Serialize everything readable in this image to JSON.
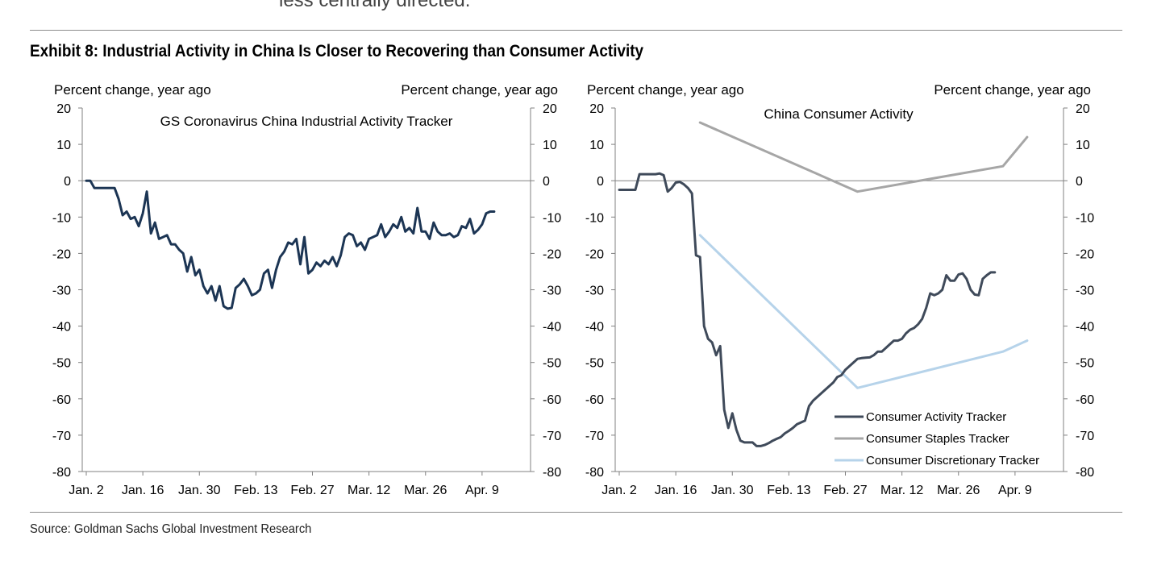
{
  "page": {
    "top_text": "less centrally directed.",
    "exhibit_title": "Exhibit 8: Industrial Activity in China Is Closer to Recovering than Consumer Activity",
    "source": "Source: Goldman Sachs Global Investment Research"
  },
  "colors": {
    "industrial": "#1c3554",
    "consumer_activity": "#3f4a5a",
    "consumer_staples": "#a6a6a6",
    "consumer_discretionary": "#b6d3ea",
    "axis": "#808080"
  },
  "chart_data": [
    {
      "type": "line",
      "title": "GS Coronavirus China Industrial Activity Tracker",
      "ylabel_left": "Percent change, year ago",
      "ylabel_right": "Percent change, year ago",
      "ylim": [
        -80,
        20
      ],
      "yticks": [
        20,
        10,
        0,
        -10,
        -20,
        -30,
        -40,
        -50,
        -60,
        -70,
        -80
      ],
      "xlim": [
        0,
        111
      ],
      "x_unit": "days since Jan. 1",
      "xtick_labels": [
        "Jan. 2",
        "Jan. 16",
        "Jan. 30",
        "Feb. 13",
        "Feb. 27",
        "Mar. 12",
        "Mar. 26",
        "Apr. 9"
      ],
      "xtick_values": [
        1,
        15,
        29,
        43,
        57,
        71,
        85,
        99
      ],
      "grid": false,
      "series": [
        {
          "name": "",
          "color_key": "industrial",
          "points": [
            [
              1,
              0
            ],
            [
              2,
              0
            ],
            [
              3,
              -2
            ],
            [
              4,
              -2
            ],
            [
              5,
              -2
            ],
            [
              6,
              -2
            ],
            [
              7,
              -2
            ],
            [
              8,
              -2
            ],
            [
              9,
              -5
            ],
            [
              10,
              -9.5
            ],
            [
              11,
              -8.5
            ],
            [
              12,
              -10.5
            ],
            [
              13,
              -10
            ],
            [
              14,
              -12.5
            ],
            [
              15,
              -9
            ],
            [
              16,
              -3
            ],
            [
              17,
              -14.5
            ],
            [
              18,
              -11.5
            ],
            [
              19,
              -16
            ],
            [
              20,
              -15.5
            ],
            [
              21,
              -15
            ],
            [
              22,
              -17.5
            ],
            [
              23,
              -17.5
            ],
            [
              24,
              -19
            ],
            [
              25,
              -20
            ],
            [
              26,
              -25
            ],
            [
              27,
              -21
            ],
            [
              28,
              -26
            ],
            [
              29,
              -24.5
            ],
            [
              30,
              -29
            ],
            [
              31,
              -31
            ],
            [
              32,
              -29
            ],
            [
              33,
              -33
            ],
            [
              34,
              -29
            ],
            [
              35,
              -34.5
            ],
            [
              36,
              -35.2
            ],
            [
              37,
              -35
            ],
            [
              38,
              -29.5
            ],
            [
              39,
              -28.5
            ],
            [
              40,
              -27
            ],
            [
              41,
              -29
            ],
            [
              42,
              -31.5
            ],
            [
              43,
              -31
            ],
            [
              44,
              -30
            ],
            [
              45,
              -25.5
            ],
            [
              46,
              -24.5
            ],
            [
              47,
              -29.5
            ],
            [
              48,
              -24.5
            ],
            [
              49,
              -21
            ],
            [
              50,
              -19.5
            ],
            [
              51,
              -17
            ],
            [
              52,
              -17.5
            ],
            [
              53,
              -16
            ],
            [
              54,
              -23
            ],
            [
              55,
              -15.5
            ],
            [
              56,
              -25.5
            ],
            [
              57,
              -24.5
            ],
            [
              58,
              -22.5
            ],
            [
              59,
              -23.5
            ],
            [
              60,
              -22
            ],
            [
              61,
              -23
            ],
            [
              62,
              -21
            ],
            [
              63,
              -23.5
            ],
            [
              64,
              -20.5
            ],
            [
              65,
              -15.5
            ],
            [
              66,
              -14.5
            ],
            [
              67,
              -15
            ],
            [
              68,
              -18
            ],
            [
              69,
              -17
            ],
            [
              70,
              -19
            ],
            [
              71,
              -16
            ],
            [
              72,
              -15.5
            ],
            [
              73,
              -15
            ],
            [
              74,
              -12
            ],
            [
              75,
              -15.5
            ],
            [
              76,
              -14
            ],
            [
              77,
              -12
            ],
            [
              78,
              -13
            ],
            [
              79,
              -10
            ],
            [
              80,
              -14
            ],
            [
              81,
              -13
            ],
            [
              82,
              -14.5
            ],
            [
              83,
              -7.5
            ],
            [
              84,
              -14
            ],
            [
              85,
              -14
            ],
            [
              86,
              -16
            ],
            [
              87,
              -11.5
            ],
            [
              88,
              -14
            ],
            [
              89,
              -15
            ],
            [
              90,
              -15
            ],
            [
              91,
              -14.5
            ],
            [
              92,
              -15.5
            ],
            [
              93,
              -15
            ],
            [
              94,
              -12.5
            ],
            [
              95,
              -13
            ],
            [
              96,
              -10.5
            ],
            [
              97,
              -14.5
            ],
            [
              98,
              -13.5
            ],
            [
              99,
              -12
            ],
            [
              100,
              -9
            ],
            [
              101,
              -8.5
            ],
            [
              102,
              -8.5
            ]
          ]
        }
      ]
    },
    {
      "type": "line",
      "title": "China Consumer Activity",
      "ylabel_left": "Percent change, year ago",
      "ylabel_right": "Percent change, year ago",
      "ylim": [
        -80,
        20
      ],
      "yticks": [
        20,
        10,
        0,
        -10,
        -20,
        -30,
        -40,
        -50,
        -60,
        -70,
        -80
      ],
      "xlim": [
        0,
        111
      ],
      "x_unit": "days since Jan. 1",
      "xtick_labels": [
        "Jan. 2",
        "Jan. 16",
        "Jan. 30",
        "Feb. 13",
        "Feb. 27",
        "Mar. 12",
        "Mar. 26",
        "Apr. 9"
      ],
      "xtick_values": [
        1,
        15,
        29,
        43,
        57,
        71,
        85,
        99
      ],
      "grid": false,
      "legend": {
        "placement": "bottom-right"
      },
      "series": [
        {
          "name": "Consumer Activity Tracker",
          "color_key": "consumer_activity",
          "points": [
            [
              1,
              -2.5
            ],
            [
              2,
              -2.5
            ],
            [
              5,
              -2.5
            ],
            [
              6,
              1.8
            ],
            [
              10,
              1.8
            ],
            [
              11,
              2
            ],
            [
              12,
              1.5
            ],
            [
              13,
              -3
            ],
            [
              14,
              -2
            ],
            [
              15,
              -0.5
            ],
            [
              16,
              -0.3
            ],
            [
              17,
              -1
            ],
            [
              18,
              -2
            ],
            [
              19,
              -3.5
            ],
            [
              20,
              -20.5
            ],
            [
              21,
              -21
            ],
            [
              22,
              -40
            ],
            [
              23,
              -43.5
            ],
            [
              24,
              -44.5
            ],
            [
              25,
              -48
            ],
            [
              26,
              -45.5
            ],
            [
              27,
              -63
            ],
            [
              28,
              -68
            ],
            [
              29,
              -64
            ],
            [
              30,
              -68.5
            ],
            [
              31,
              -71.5
            ],
            [
              32,
              -72
            ],
            [
              33,
              -72
            ],
            [
              34,
              -72
            ],
            [
              35,
              -73
            ],
            [
              36,
              -73
            ],
            [
              37,
              -72.7
            ],
            [
              38,
              -72.2
            ],
            [
              39,
              -71.5
            ],
            [
              40,
              -71
            ],
            [
              41,
              -70.5
            ],
            [
              42,
              -69.5
            ],
            [
              43,
              -68.8
            ],
            [
              44,
              -68
            ],
            [
              45,
              -67
            ],
            [
              46,
              -66.5
            ],
            [
              47,
              -66
            ],
            [
              48,
              -62
            ],
            [
              49,
              -60.5
            ],
            [
              50,
              -59.5
            ],
            [
              51,
              -58.5
            ],
            [
              52,
              -57.5
            ],
            [
              53,
              -56.5
            ],
            [
              54,
              -55.5
            ],
            [
              55,
              -54
            ],
            [
              56,
              -53.5
            ],
            [
              57,
              -52
            ],
            [
              58,
              -51
            ],
            [
              59,
              -50
            ],
            [
              60,
              -49
            ],
            [
              61,
              -48.8
            ],
            [
              62,
              -48.7
            ],
            [
              63,
              -48.6
            ],
            [
              64,
              -48
            ],
            [
              65,
              -47
            ],
            [
              66,
              -47
            ],
            [
              67,
              -46
            ],
            [
              68,
              -45
            ],
            [
              69,
              -44
            ],
            [
              70,
              -44
            ],
            [
              71,
              -43.5
            ],
            [
              72,
              -42
            ],
            [
              73,
              -41
            ],
            [
              74,
              -40.5
            ],
            [
              75,
              -39.5
            ],
            [
              76,
              -38
            ],
            [
              77,
              -35
            ],
            [
              78,
              -31
            ],
            [
              79,
              -31.5
            ],
            [
              80,
              -31
            ],
            [
              81,
              -30
            ],
            [
              82,
              -26
            ],
            [
              83,
              -27.5
            ],
            [
              84,
              -27.5
            ],
            [
              85,
              -25.8
            ],
            [
              86,
              -25.5
            ],
            [
              87,
              -27
            ],
            [
              88,
              -30
            ],
            [
              89,
              -31.3
            ],
            [
              90,
              -31.5
            ],
            [
              91,
              -27
            ],
            [
              92,
              -26
            ],
            [
              93,
              -25.2
            ],
            [
              94,
              -25.2
            ]
          ]
        },
        {
          "name": "Consumer Staples Tracker",
          "color_key": "consumer_staples",
          "points": [
            [
              21,
              16
            ],
            [
              60,
              -3
            ],
            [
              96,
              4
            ],
            [
              102,
              12
            ]
          ]
        },
        {
          "name": "Consumer Discretionary Tracker",
          "color_key": "consumer_discretionary",
          "points": [
            [
              21,
              -15
            ],
            [
              60,
              -57
            ],
            [
              96,
              -47
            ],
            [
              102,
              -44
            ]
          ]
        }
      ]
    }
  ]
}
